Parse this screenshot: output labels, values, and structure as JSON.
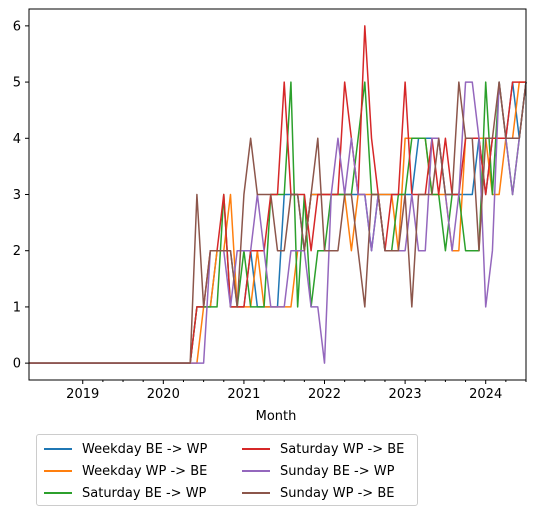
{
  "chart_data": {
    "type": "line",
    "xlabel": "Month",
    "ylabel": "",
    "x_ticks": [
      "2019",
      "2020",
      "2021",
      "2022",
      "2023",
      "2024"
    ],
    "y_ticks": [
      "0",
      "1",
      "2",
      "3",
      "4",
      "5",
      "6"
    ],
    "xlim": [
      "2018-05",
      "2024-07"
    ],
    "ylim": [
      -0.3,
      6.3
    ],
    "x_flat": [
      "2018-05",
      "2020-04"
    ],
    "x": [
      "2020-05",
      "2020-06",
      "2020-07",
      "2020-08",
      "2020-09",
      "2020-10",
      "2020-11",
      "2020-12",
      "2021-01",
      "2021-02",
      "2021-03",
      "2021-04",
      "2021-05",
      "2021-06",
      "2021-07",
      "2021-08",
      "2021-09",
      "2021-10",
      "2021-11",
      "2021-12",
      "2022-01",
      "2022-02",
      "2022-03",
      "2022-04",
      "2022-05",
      "2022-06",
      "2022-07",
      "2022-08",
      "2022-09",
      "2022-10",
      "2022-11",
      "2022-12",
      "2023-01",
      "2023-02",
      "2023-03",
      "2023-04",
      "2023-05",
      "2023-06",
      "2023-07",
      "2023-08",
      "2023-09",
      "2023-10",
      "2023-11",
      "2023-12",
      "2024-01",
      "2024-02",
      "2024-03",
      "2024-04",
      "2024-05",
      "2024-06",
      "2024-07"
    ],
    "series": [
      {
        "name": "Weekday BE -> WP",
        "color": "#1f77b4",
        "values": [
          0,
          1,
          1,
          1,
          2,
          2,
          2,
          1,
          1,
          2,
          1,
          1,
          1,
          1,
          3,
          3,
          3,
          2,
          3,
          3,
          3,
          3,
          3,
          3,
          3,
          3,
          3,
          2,
          3,
          3,
          3,
          3,
          3,
          3,
          4,
          4,
          4,
          4,
          3,
          3,
          3,
          3,
          3,
          4,
          3,
          4,
          4,
          4,
          5,
          4,
          5
        ]
      },
      {
        "name": "Weekday WP -> BE",
        "color": "#ff7f0e",
        "values": [
          0,
          0,
          1,
          1,
          2,
          2,
          3,
          1,
          1,
          1,
          2,
          1,
          1,
          1,
          1,
          1,
          2,
          2,
          3,
          3,
          3,
          3,
          3,
          3,
          2,
          3,
          3,
          3,
          3,
          3,
          3,
          2,
          4,
          4,
          4,
          4,
          3,
          3,
          3,
          2,
          2,
          4,
          4,
          4,
          4,
          3,
          3,
          4,
          4,
          5,
          5
        ]
      },
      {
        "name": "Saturday BE -> WP",
        "color": "#2ca02c",
        "values": [
          0,
          1,
          1,
          1,
          1,
          3,
          1,
          1,
          2,
          1,
          1,
          1,
          3,
          3,
          3,
          5,
          1,
          3,
          1,
          2,
          2,
          3,
          3,
          3,
          3,
          4,
          5,
          3,
          3,
          2,
          2,
          3,
          3,
          4,
          4,
          4,
          3,
          3,
          2,
          3,
          3,
          2,
          2,
          2,
          5,
          3,
          5,
          4,
          3,
          4,
          5
        ]
      },
      {
        "name": "Saturday WP -> BE",
        "color": "#d62728",
        "values": [
          0,
          1,
          1,
          2,
          2,
          3,
          1,
          1,
          1,
          2,
          2,
          2,
          3,
          3,
          5,
          3,
          3,
          3,
          2,
          3,
          3,
          3,
          3,
          5,
          4,
          3,
          6,
          4,
          3,
          2,
          3,
          3,
          5,
          3,
          3,
          3,
          4,
          3,
          4,
          3,
          3,
          4,
          4,
          4,
          3,
          4,
          4,
          4,
          5,
          5,
          5
        ]
      },
      {
        "name": "Sunday BE -> WP",
        "color": "#9467bd",
        "values": [
          0,
          0,
          0,
          2,
          2,
          2,
          1,
          2,
          2,
          2,
          3,
          2,
          1,
          1,
          1,
          2,
          2,
          2,
          1,
          1,
          0,
          3,
          4,
          3,
          4,
          3,
          3,
          2,
          3,
          2,
          2,
          2,
          2,
          3,
          2,
          2,
          4,
          4,
          3,
          2,
          3,
          5,
          5,
          4,
          1,
          2,
          5,
          4,
          3,
          4,
          5
        ]
      },
      {
        "name": "Sunday WP -> BE",
        "color": "#8c564b",
        "values": [
          0,
          3,
          1,
          2,
          2,
          2,
          2,
          1,
          3,
          4,
          3,
          3,
          3,
          2,
          2,
          3,
          3,
          2,
          3,
          4,
          2,
          2,
          2,
          3,
          3,
          2,
          1,
          3,
          3,
          2,
          2,
          2,
          3,
          1,
          3,
          3,
          3,
          4,
          3,
          3,
          5,
          4,
          4,
          2,
          4,
          4,
          5,
          4,
          4,
          4,
          5
        ]
      }
    ],
    "legend": {
      "position": "lower-center-outside",
      "columns": 2
    }
  }
}
